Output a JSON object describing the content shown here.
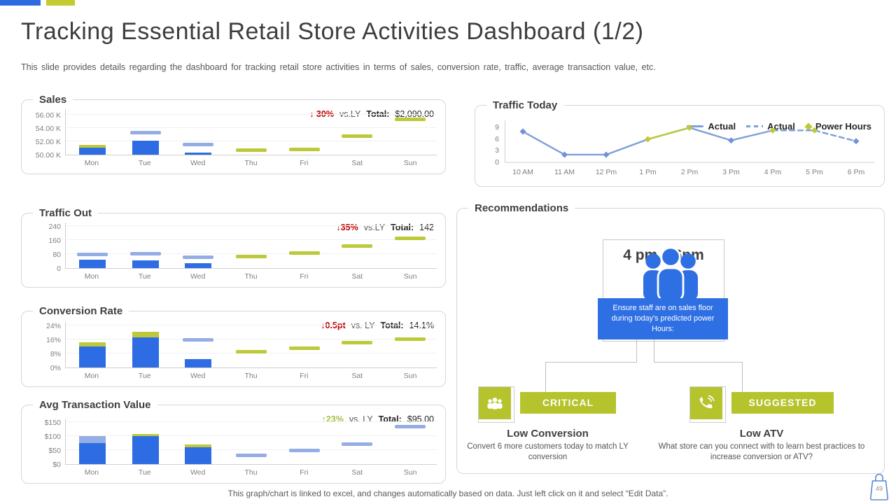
{
  "meta": {
    "slide_number": "49"
  },
  "colors": {
    "bar-blue": "#2e6ce4",
    "lightblue": "#94ade4",
    "olive": "#bdc93a",
    "line-blue": "#7f9fd9",
    "marker-blue": "#6e93d8",
    "box-blue": "#2f6fe4",
    "badge-green": "#b5c32c",
    "red": "#c00000",
    "stat-green": "#a3c14a",
    "topbar-blue": "#2f6be0",
    "topbar-green": "#c3cc2e"
  },
  "header": {
    "title": "Tracking Essential Retail Store Activities Dashboard (1/2)",
    "subtitle": "This slide provides details regarding the dashboard for tracking retail store activities in terms of sales, conversion rate, traffic, average transaction value, etc."
  },
  "footer": {
    "note": "This graph/chart is linked to excel, and changes automatically based on data. Just left click on it and select “Edit Data”."
  },
  "chart_data": [
    {
      "id": "sales",
      "type": "bar",
      "title": "Sales",
      "stat": {
        "change": "↓ 30%",
        "direction": "down",
        "vs": "vs.LY",
        "total_label": "Total:",
        "total": "$2,090.00"
      },
      "axis": {
        "ymin": 50,
        "ymax": 56.9,
        "ticks": [
          {
            "label": "56.00 K",
            "value": 56
          },
          {
            "label": "54.00 K",
            "value": 54
          },
          {
            "label": "52.00 K",
            "value": 52
          },
          {
            "label": "50.00 K",
            "value": 50
          }
        ]
      },
      "categories": [
        "Mon",
        "Tue",
        "Wed",
        "Thu",
        "Fri",
        "Sat",
        "Sun"
      ],
      "columns": [
        {
          "day": "Mon",
          "segments": [
            {
              "kind": "bar",
              "color": "blue",
              "from": 50,
              "to": 51.1
            },
            {
              "kind": "bar",
              "color": "green",
              "from": 51.1,
              "to": 51.5
            }
          ]
        },
        {
          "day": "Tue",
          "segments": [
            {
              "kind": "bar",
              "color": "blue",
              "from": 50,
              "to": 52.1
            },
            {
              "kind": "dash",
              "color": "lightblue",
              "value": 53.35
            }
          ]
        },
        {
          "day": "Wed",
          "segments": [
            {
              "kind": "bar",
              "color": "blue",
              "from": 50,
              "to": 50.3
            },
            {
              "kind": "dash",
              "color": "lightblue",
              "value": 51.55
            }
          ]
        },
        {
          "day": "Thu",
          "segments": [
            {
              "kind": "dash",
              "color": "green",
              "value": 50.7
            }
          ]
        },
        {
          "day": "Fri",
          "segments": [
            {
              "kind": "dash",
              "color": "green",
              "value": 50.8
            }
          ]
        },
        {
          "day": "Sat",
          "segments": [
            {
              "kind": "dash",
              "color": "green",
              "value": 52.8
            }
          ]
        },
        {
          "day": "Sun",
          "segments": [
            {
              "kind": "dash",
              "color": "green",
              "value": 55.3
            }
          ]
        }
      ]
    },
    {
      "id": "traffic_today",
      "type": "line",
      "title": "Traffic Today",
      "legend": [
        {
          "label": "Actual",
          "style": "solid"
        },
        {
          "label": "Actual",
          "style": "dashed"
        },
        {
          "label": "Power Hours",
          "style": "diamond"
        }
      ],
      "axis": {
        "ymin": 0,
        "ymax": 9.8,
        "ticks": [
          {
            "label": "9",
            "value": 9
          },
          {
            "label": "6",
            "value": 6
          },
          {
            "label": "3",
            "value": 3
          },
          {
            "label": "0",
            "value": 0
          }
        ]
      },
      "x_labels": [
        "10 AM",
        "11 AM",
        "12 Pm",
        "1 Pm",
        "2 Pm",
        "3 Pm",
        "4 Pm",
        "5 Pm",
        "6 Pm"
      ],
      "points": [
        {
          "y": 8,
          "marker": "blue"
        },
        {
          "y": 2,
          "marker": "blue"
        },
        {
          "y": 2,
          "marker": "blue"
        },
        {
          "y": 6,
          "marker": "green"
        },
        {
          "y": 9,
          "marker": "green"
        },
        {
          "y": 5.7,
          "marker": "blue"
        },
        {
          "y": 8.3,
          "marker": "green"
        },
        {
          "y": 8.3,
          "marker": "green"
        },
        {
          "y": 5.5,
          "marker": "blue"
        }
      ],
      "solid_until_index": 6,
      "green_segments": [
        [
          3,
          4
        ]
      ]
    },
    {
      "id": "traffic_out",
      "type": "bar",
      "title": "Traffic Out",
      "stat": {
        "change": "↓35%",
        "direction": "down",
        "vs": "vs.LY",
        "total_label": "Total:",
        "total": "142"
      },
      "axis": {
        "ymin": 0,
        "ymax": 265,
        "ticks": [
          {
            "label": "240",
            "value": 240
          },
          {
            "label": "160",
            "value": 160
          },
          {
            "label": "80",
            "value": 80
          },
          {
            "label": "0",
            "value": 0
          }
        ]
      },
      "categories": [
        "Mon",
        "Tue",
        "Wed",
        "Thu",
        "Fri",
        "Sat",
        "Sun"
      ],
      "columns": [
        {
          "day": "Mon",
          "segments": [
            {
              "kind": "bar",
              "color": "blue",
              "from": 0,
              "to": 50
            },
            {
              "kind": "dash",
              "color": "lightblue",
              "value": 78
            }
          ]
        },
        {
          "day": "Tue",
          "segments": [
            {
              "kind": "bar",
              "color": "blue",
              "from": 0,
              "to": 46
            },
            {
              "kind": "dash",
              "color": "lightblue",
              "value": 82
            }
          ]
        },
        {
          "day": "Wed",
          "segments": [
            {
              "kind": "bar",
              "color": "blue",
              "from": 0,
              "to": 30
            },
            {
              "kind": "dash",
              "color": "lightblue",
              "value": 64
            }
          ]
        },
        {
          "day": "Thu",
          "segments": [
            {
              "kind": "dash",
              "color": "green",
              "value": 68
            }
          ]
        },
        {
          "day": "Fri",
          "segments": [
            {
              "kind": "dash",
              "color": "green",
              "value": 88
            }
          ]
        },
        {
          "day": "Sat",
          "segments": [
            {
              "kind": "dash",
              "color": "green",
              "value": 128
            }
          ]
        },
        {
          "day": "Sun",
          "segments": [
            {
              "kind": "dash",
              "color": "green",
              "value": 172
            }
          ]
        }
      ]
    },
    {
      "id": "conversion",
      "type": "bar",
      "title": "Conversion Rate",
      "stat": {
        "change": "↓0.5pt",
        "direction": "down",
        "vs": "vs. LY",
        "total_label": "Total:",
        "total": "14.1%"
      },
      "axis": {
        "ymin": 0,
        "ymax": 26.5,
        "ticks": [
          {
            "label": "24%",
            "value": 24
          },
          {
            "label": "16%",
            "value": 16
          },
          {
            "label": "8%",
            "value": 8
          },
          {
            "label": "0%",
            "value": 0
          }
        ]
      },
      "categories": [
        "Mon",
        "Tue",
        "Wed",
        "Thu",
        "Fri",
        "Sat",
        "Sun"
      ],
      "columns": [
        {
          "day": "Mon",
          "segments": [
            {
              "kind": "bar",
              "color": "blue",
              "from": 0,
              "to": 12
            },
            {
              "kind": "bar",
              "color": "green",
              "from": 12,
              "to": 14.5
            }
          ]
        },
        {
          "day": "Tue",
          "segments": [
            {
              "kind": "bar",
              "color": "blue",
              "from": 0,
              "to": 17.5
            },
            {
              "kind": "bar",
              "color": "green",
              "from": 17.5,
              "to": 20.5
            }
          ]
        },
        {
          "day": "Wed",
          "segments": [
            {
              "kind": "bar",
              "color": "blue",
              "from": 0,
              "to": 5
            },
            {
              "kind": "dash",
              "color": "lightblue",
              "value": 15.8
            }
          ]
        },
        {
          "day": "Thu",
          "segments": [
            {
              "kind": "dash",
              "color": "green",
              "value": 9
            }
          ]
        },
        {
          "day": "Fri",
          "segments": [
            {
              "kind": "dash",
              "color": "green",
              "value": 11
            }
          ]
        },
        {
          "day": "Sat",
          "segments": [
            {
              "kind": "dash",
              "color": "green",
              "value": 14.3
            }
          ]
        },
        {
          "day": "Sun",
          "segments": [
            {
              "kind": "dash",
              "color": "green",
              "value": 16.5
            }
          ]
        }
      ]
    },
    {
      "id": "atv",
      "type": "bar",
      "title": "Avg Transaction Value",
      "stat": {
        "change": "↑23%",
        "direction": "up",
        "vs": "vs. LY",
        "total_label": "Total:",
        "total": "$95.00"
      },
      "axis": {
        "ymin": 0,
        "ymax": 165,
        "ticks": [
          {
            "label": "$150",
            "value": 150
          },
          {
            "label": "$100",
            "value": 100
          },
          {
            "label": "$50",
            "value": 50
          },
          {
            "label": "$0",
            "value": 0
          }
        ]
      },
      "categories": [
        "Mon",
        "Tue",
        "Wed",
        "Thu",
        "Fri",
        "Sat",
        "Sun"
      ],
      "columns": [
        {
          "day": "Mon",
          "segments": [
            {
              "kind": "bar",
              "color": "blue",
              "from": 0,
              "to": 75
            },
            {
              "kind": "bar",
              "color": "lightblue",
              "from": 75,
              "to": 100
            }
          ]
        },
        {
          "day": "Tue",
          "segments": [
            {
              "kind": "bar",
              "color": "blue",
              "from": 0,
              "to": 100
            },
            {
              "kind": "bar",
              "color": "green",
              "from": 100,
              "to": 108
            }
          ]
        },
        {
          "day": "Wed",
          "segments": [
            {
              "kind": "bar",
              "color": "blue",
              "from": 0,
              "to": 60
            },
            {
              "kind": "bar",
              "color": "green",
              "from": 60,
              "to": 70
            }
          ]
        },
        {
          "day": "Thu",
          "segments": [
            {
              "kind": "dash",
              "color": "lightblue",
              "value": 33
            }
          ]
        },
        {
          "day": "Fri",
          "segments": [
            {
              "kind": "dash",
              "color": "lightblue",
              "value": 50
            }
          ]
        },
        {
          "day": "Sat",
          "segments": [
            {
              "kind": "dash",
              "color": "lightblue",
              "value": 73
            }
          ]
        },
        {
          "day": "Sun",
          "segments": [
            {
              "kind": "dash",
              "color": "lightblue",
              "value": 135
            }
          ]
        }
      ]
    }
  ],
  "recommendations": {
    "title": "Recommendations",
    "power_hours": {
      "time_range": "4 pm – 6pm",
      "note": "Ensure staff are on sales floor during today's predicted power Hours:"
    },
    "items": [
      {
        "badge": "CRITICAL",
        "icon": "people",
        "heading": "Low Conversion",
        "description": "Convert 6 more customers today to match LY conversion"
      },
      {
        "badge": "SUGGESTED",
        "icon": "phone",
        "heading": "Low ATV",
        "description": "What store can you connect with to learn best practices to increase conversion or ATV?"
      }
    ]
  }
}
